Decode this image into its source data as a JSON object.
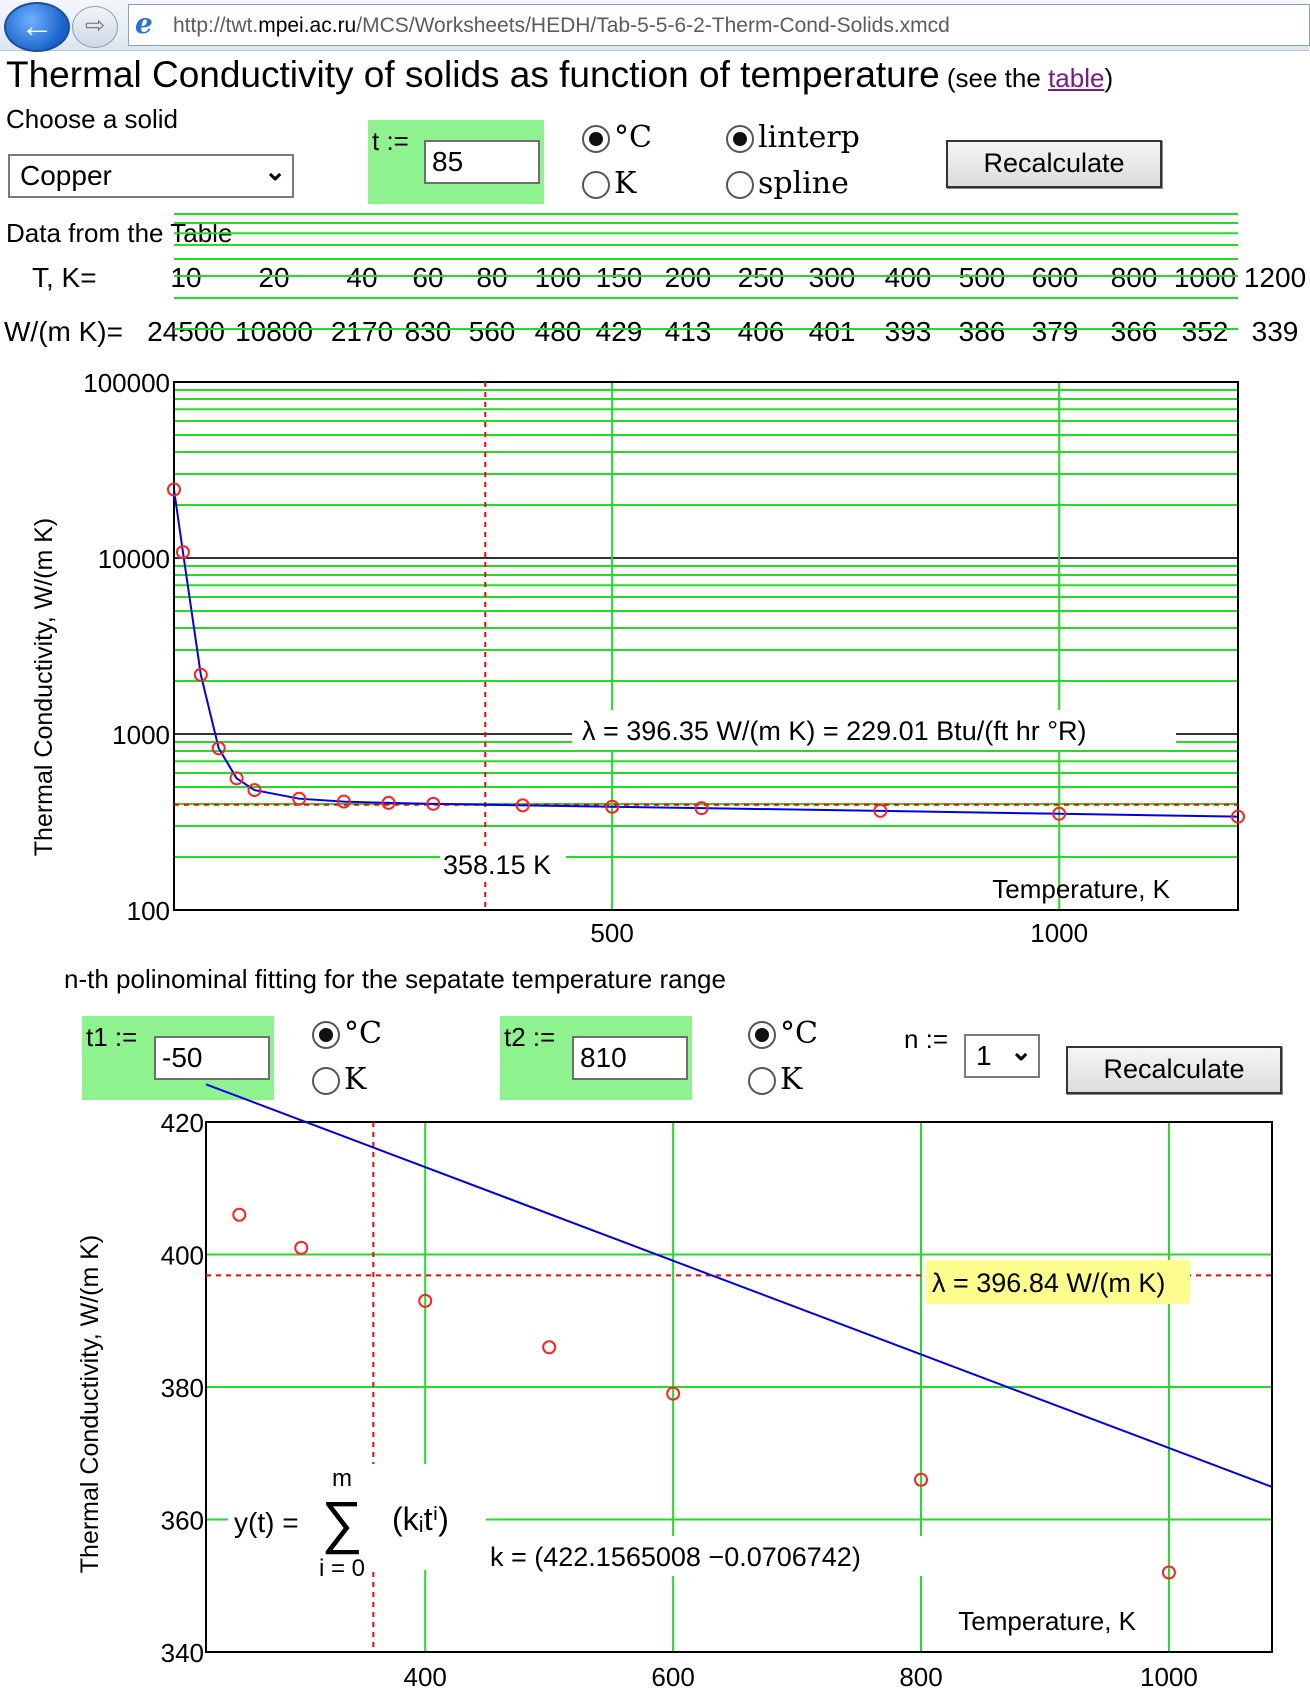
{
  "browser": {
    "url_prefix": "http://twt.",
    "url_domain": "mpei.ac.ru",
    "url_path": "/MCS/Worksheets/HEDH/Tab-5-5-6-2-Therm-Cond-Solids.xmcd"
  },
  "title": {
    "main": "Thermal Conductivity of solids as function of temperature",
    "see_pre": " (see the ",
    "link": "table",
    "see_post": ")"
  },
  "controls": {
    "choose_label": "Choose a solid",
    "solid_value": "Copper",
    "t_label": "t :=",
    "t_value": "85",
    "unit_c": "°C",
    "unit_k": "K",
    "interp_linear": "linterp",
    "interp_spline": "spline",
    "recalc_label": "Recalculate"
  },
  "table": {
    "heading": "Data from the Table",
    "row1_label": "T, K=",
    "row2_label": "W/(m K)=",
    "T": [
      "10",
      "20",
      "40",
      "60",
      "80",
      "100",
      "150",
      "200",
      "250",
      "300",
      "400",
      "500",
      "600",
      "800",
      "1000",
      "1200"
    ],
    "W": [
      "24500",
      "10800",
      "2170",
      "830",
      "560",
      "480",
      "429",
      "413",
      "406",
      "401",
      "393",
      "386",
      "379",
      "366",
      "352",
      "339"
    ]
  },
  "section2": {
    "heading": "n-th polinominal fitting for the sepatate temperature range",
    "t1_label": "t1  :=",
    "t1_value": "-50",
    "t2_label": "t2  :=",
    "t2_value": "810",
    "unit_c": "°C",
    "unit_k": "K",
    "n_label": "n  :=",
    "n_value": "1",
    "recalc_label": "Recalculate"
  },
  "chart_data": [
    {
      "type": "line",
      "ylabel": "Thermal Conductivity, W/(m K)",
      "xlabel": "Temperature, K",
      "y_scale": "log",
      "ylim": [
        100,
        100000
      ],
      "xlim": [
        10,
        1200
      ],
      "y_ticks": [
        "100000",
        "10000",
        "1000",
        "100"
      ],
      "x_ticks": [
        "500",
        "1000"
      ],
      "grid": true,
      "series": [
        {
          "x": [
            10,
            20,
            40,
            60,
            80,
            100,
            150,
            200,
            250,
            300,
            400,
            500,
            600,
            800,
            1000,
            1200
          ],
          "y": [
            24500,
            10800,
            2170,
            830,
            560,
            480,
            429,
            413,
            406,
            401,
            393,
            386,
            379,
            366,
            352,
            339
          ]
        }
      ],
      "marker_x_label": "358.15 K",
      "marker_x": 358.15,
      "marker_y": 396.35,
      "annotation": "λ = 396.35 W/(m K)  = 229.01 Btu/(ft hr °R)"
    },
    {
      "type": "scatter",
      "ylabel": "Thermal Conductivity, W/(m K)",
      "xlabel": "Temperature, K",
      "ylim": [
        340,
        420
      ],
      "xlim": [
        223.15,
        1083.15
      ],
      "y_ticks": [
        "420",
        "400",
        "380",
        "360",
        "340"
      ],
      "x_ticks": [
        "400",
        "600",
        "800",
        "1000"
      ],
      "grid": true,
      "points_x": [
        250,
        300,
        400,
        500,
        600,
        800,
        1000
      ],
      "points_y": [
        406,
        401,
        393,
        386,
        379,
        366,
        352
      ],
      "fit_k0": 422.1565008,
      "fit_k1": -0.0706742,
      "marker_x": 358.15,
      "marker_y": 396.84,
      "annotation": "λ = 396.84 W/(m K)",
      "formula_lhs": "y(t) =",
      "formula_top": "m",
      "formula_sigma": "∑",
      "formula_bottom": "i = 0",
      "formula_term": "(kᵢtⁱ)",
      "coeffs_text": "k = (422.1565008   −0.0706742)"
    }
  ]
}
